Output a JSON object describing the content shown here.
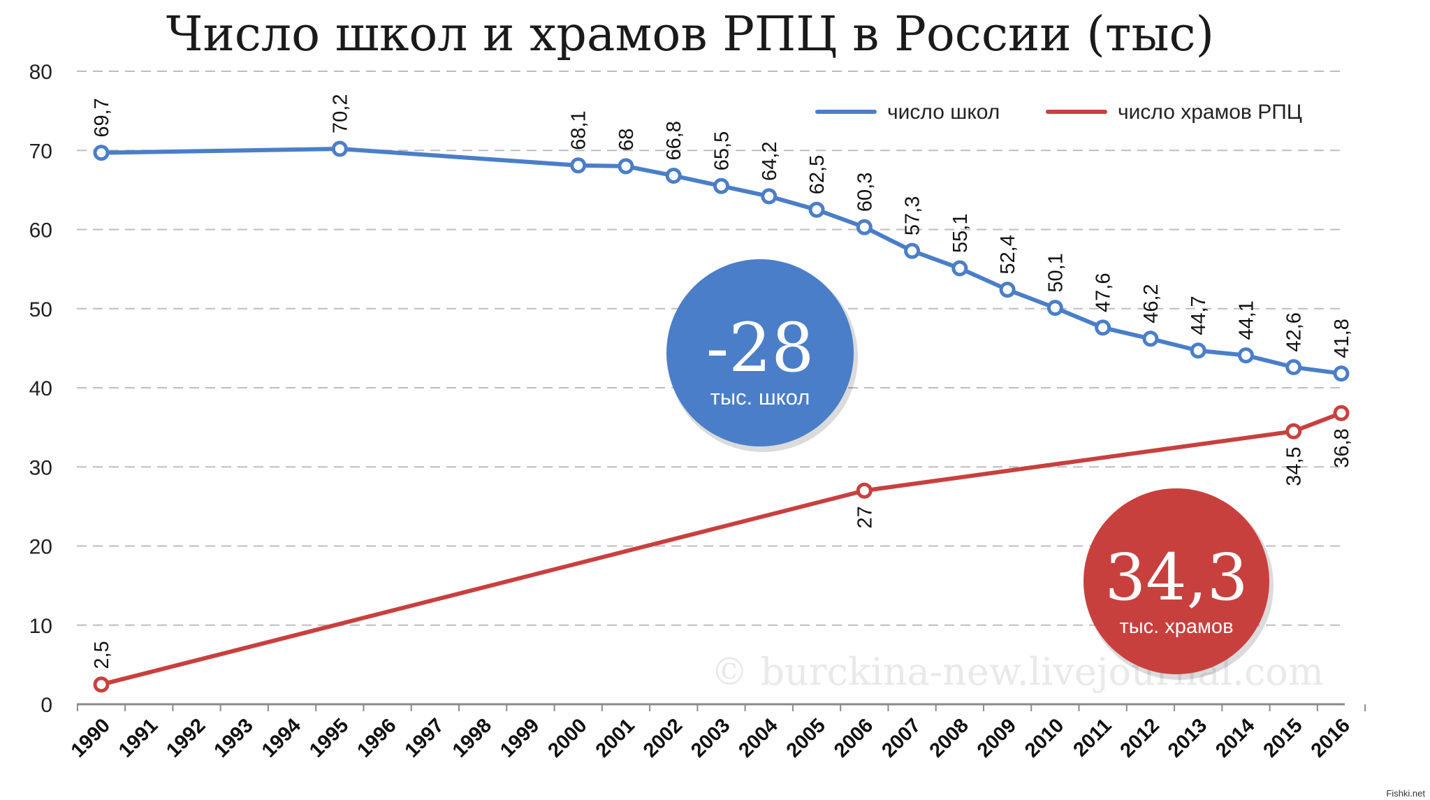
{
  "chart_data": {
    "type": "line",
    "title": "Число школ и храмов РПЦ в России (тыс)",
    "xlabel": "",
    "ylabel": "",
    "ylim": [
      0,
      80
    ],
    "yticks": [
      "0",
      "10",
      "20",
      "30",
      "40",
      "50",
      "60",
      "70",
      "80"
    ],
    "categories": [
      "1990",
      "1991",
      "1992",
      "1993",
      "1994",
      "1995",
      "1996",
      "1997",
      "1998",
      "1999",
      "2000",
      "2001",
      "2002",
      "2003",
      "2004",
      "2005",
      "2006",
      "2007",
      "2008",
      "2009",
      "2010",
      "2011",
      "2012",
      "2013",
      "2014",
      "2015",
      "2016"
    ],
    "grid": true,
    "legend_position": "top-right",
    "series": [
      {
        "name": "число школ",
        "color": "#4a7ec8",
        "points": [
          {
            "x": "1990",
            "y": 69.7,
            "label": "69,7"
          },
          {
            "x": "1995",
            "y": 70.2,
            "label": "70,2"
          },
          {
            "x": "2000",
            "y": 68.1,
            "label": "68,1"
          },
          {
            "x": "2001",
            "y": 68.0,
            "label": "68"
          },
          {
            "x": "2002",
            "y": 66.8,
            "label": "66,8"
          },
          {
            "x": "2003",
            "y": 65.5,
            "label": "65,5"
          },
          {
            "x": "2004",
            "y": 64.2,
            "label": "64,2"
          },
          {
            "x": "2005",
            "y": 62.5,
            "label": "62,5"
          },
          {
            "x": "2006",
            "y": 60.3,
            "label": "60,3"
          },
          {
            "x": "2007",
            "y": 57.3,
            "label": "57,3"
          },
          {
            "x": "2008",
            "y": 55.1,
            "label": "55,1"
          },
          {
            "x": "2009",
            "y": 52.4,
            "label": "52,4"
          },
          {
            "x": "2010",
            "y": 50.1,
            "label": "50,1"
          },
          {
            "x": "2011",
            "y": 47.6,
            "label": "47,6"
          },
          {
            "x": "2012",
            "y": 46.2,
            "label": "46,2"
          },
          {
            "x": "2013",
            "y": 44.7,
            "label": "44,7"
          },
          {
            "x": "2014",
            "y": 44.1,
            "label": "44,1"
          },
          {
            "x": "2015",
            "y": 42.6,
            "label": "42,6"
          },
          {
            "x": "2016",
            "y": 41.8,
            "label": "41,8"
          }
        ]
      },
      {
        "name": "число храмов РПЦ",
        "color": "#c8403e",
        "points": [
          {
            "x": "1990",
            "y": 2.5,
            "label": "2,5"
          },
          {
            "x": "2006",
            "y": 27,
            "label": "27"
          },
          {
            "x": "2015",
            "y": 34.5,
            "label": "34,5"
          },
          {
            "x": "2016",
            "y": 36.8,
            "label": "36,8"
          }
        ]
      }
    ],
    "annotations": [
      {
        "big": "-28",
        "small": "тыс. школ",
        "color": "#4a7ec8"
      },
      {
        "big": "34,3",
        "small": "тыс. храмов",
        "color": "#c8403e"
      }
    ]
  },
  "watermark": "© burckina-new.livejournal.com",
  "corner_tag": "Fishki.net"
}
